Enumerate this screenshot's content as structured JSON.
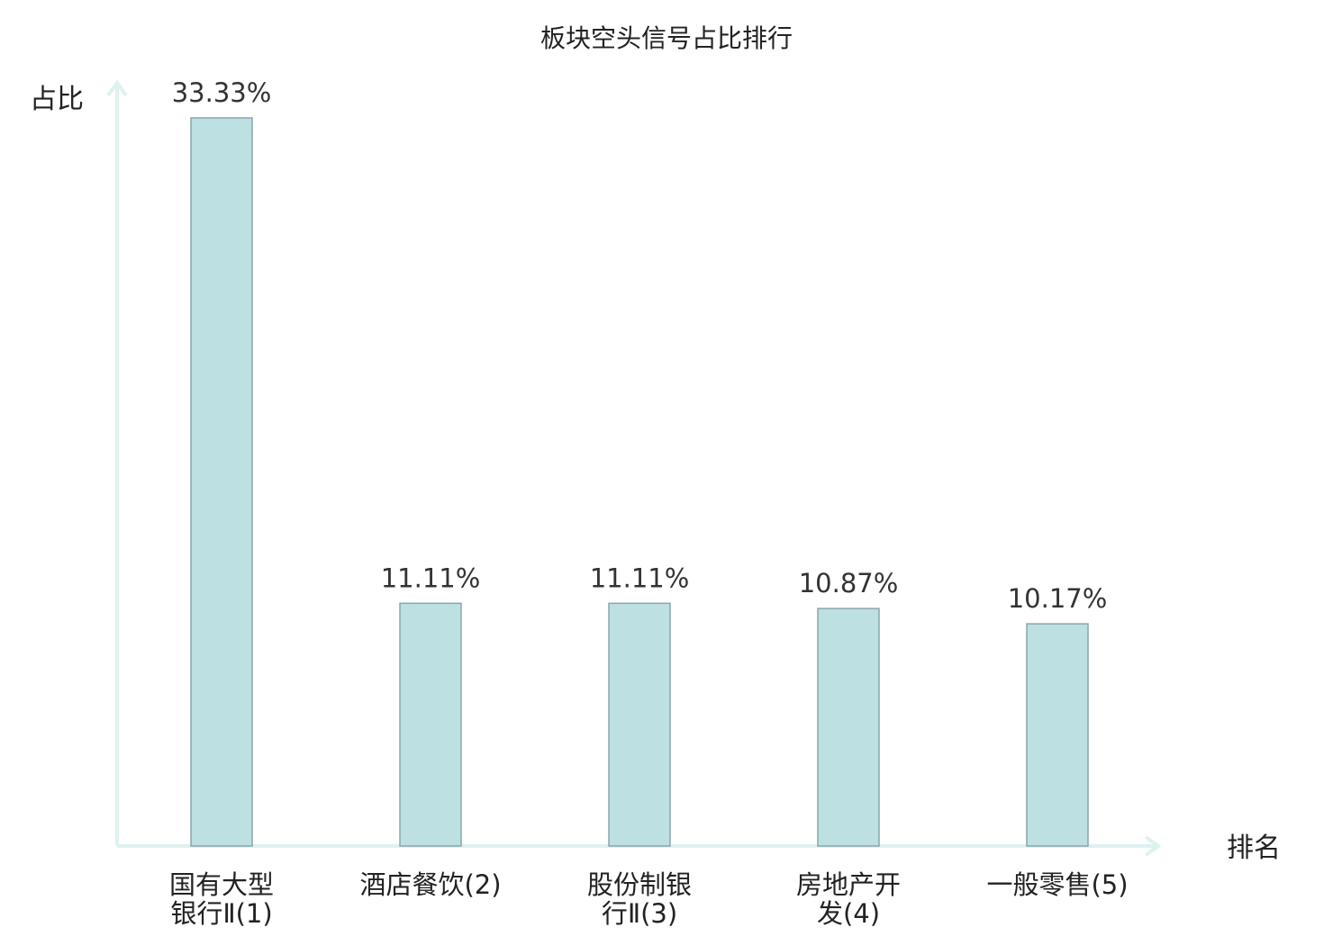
{
  "chart_data": {
    "type": "bar",
    "title": "板块空头信号占比排行",
    "ylabel": "占比",
    "xlabel": "排名",
    "ylim": [
      0,
      35
    ],
    "grid": false,
    "legend": "none",
    "categories": [
      [
        "国有大型",
        "银行Ⅱ(1)"
      ],
      [
        "酒店餐饮(2)"
      ],
      [
        "股份制银",
        "行Ⅱ(3)"
      ],
      [
        "房地产开",
        "发(4)"
      ],
      [
        "一般零售(5)"
      ]
    ],
    "highlight_index": 3,
    "values": [
      33.33,
      11.11,
      11.11,
      10.87,
      10.17
    ],
    "value_labels": [
      "33.33%",
      "11.11%",
      "11.11%",
      "10.87%",
      "10.17%"
    ],
    "colors": {
      "bar_fill": "#bde0e2",
      "bar_stroke": "#8aa6a8",
      "axis": "#def2ef",
      "highlight_label": "#e8141e",
      "text": "#222222"
    }
  }
}
